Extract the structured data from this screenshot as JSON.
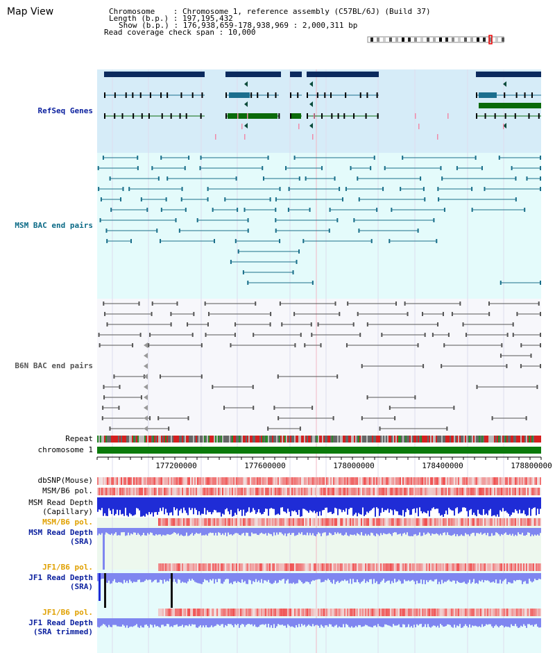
{
  "header": {
    "title": "Map View",
    "chromosome_line": "Chromosome    : Chromosome 1, reference assembly (C57BL/6J) (Build 37)",
    "length_line": "Length (b.p.) : 197,195,432",
    "show_line": "Show (b.p.) : 176,938,659-178,938,969 : 2,000,311 bp",
    "coverage_line": "Read coverage check span : 10,000"
  },
  "tracks": {
    "refseq": "RefSeq Genes",
    "msm_bac": "MSM BAC end pairs",
    "b6n_bac": "B6N BAC end pairs",
    "repeat": "Repeat",
    "chromosome": "chromosome 1",
    "dbsnp": "dbSNP(Mouse)",
    "msm_b6_pol_1": "MSM/B6 pol.",
    "msm_depth_cap_1": "MSM Read Depth",
    "msm_depth_cap_2": "(Capillary)",
    "msm_b6_pol_2": "MSM/B6 pol.",
    "msm_depth_sra_1": "MSM Read Depth",
    "msm_depth_sra_2": "(SRA)",
    "jf1_b6_pol_1": "JF1/B6 pol.",
    "jf1_depth_sra_1": "JF1 Read Depth",
    "jf1_depth_sra_2": "(SRA)",
    "jf1_b6_pol_2": "JF1/B6 pol.",
    "jf1_depth_trim_1": "JF1 Read Depth",
    "jf1_depth_trim_2": "(SRA trimmed)"
  },
  "axis": {
    "ticks": [
      "177200000",
      "177600000",
      "178000000",
      "178400000",
      "178800000"
    ]
  },
  "colors": {
    "refseq_bg": "#d6ecf8",
    "msm_bg": "#e4fbfb",
    "b6n_bg": "#f7f7fb",
    "gene_dark": "#0b2a5e",
    "gene_teal": "#1b6e8e",
    "gene_green": "#0a6a0a",
    "msm_line": "#1a6f8a",
    "b6n_line": "#555555",
    "chromosome_bar": "#0b7a0b",
    "depth_blue": "#1f2cd6",
    "depth_light": "#7f86f0",
    "pol_red": "#e03030"
  }
}
